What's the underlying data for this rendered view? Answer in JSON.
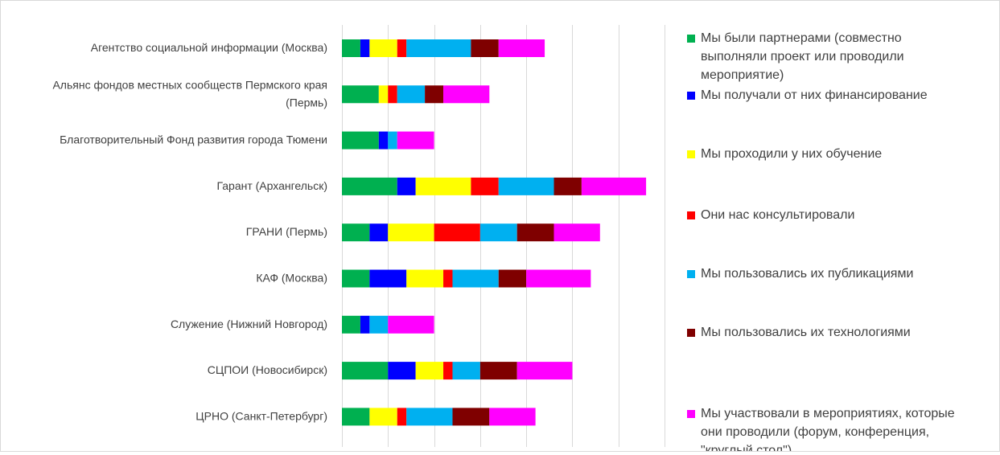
{
  "chart_data": {
    "type": "bar",
    "orientation": "horizontal",
    "stacked": true,
    "grid": true,
    "legend_position": "right",
    "categories": [
      "Агентство социальной информации (Москва)",
      "Альянс фондов местных сообществ Пермского края (Пермь)",
      "Благотворительный Фонд развития города Тюмени",
      "Гарант (Архангельск)",
      "ГРАНИ (Пермь)",
      "КАФ (Москва)",
      "Служение (Нижний Новгород)",
      "СЦПОИ (Новосибирск)",
      "ЦРНО (Санкт-Петербург)"
    ],
    "category_lines": [
      [
        "Агентство социальной информации (Москва)"
      ],
      [
        "Альянс фондов местных сообществ Пермского края",
        "(Пермь)"
      ],
      [
        "Благотворительный Фонд развития города Тюмени"
      ],
      [
        "Гарант (Архангельск)"
      ],
      [
        "ГРАНИ (Пермь)"
      ],
      [
        "КАФ (Москва)"
      ],
      [
        "Служение (Нижний Новгород)"
      ],
      [
        "СЦПОИ (Новосибирск)"
      ],
      [
        "ЦРНО (Санкт-Петербург)"
      ]
    ],
    "xlim": [
      0,
      35
    ],
    "x_gridlines": [
      0,
      5,
      10,
      15,
      20,
      25,
      30,
      35
    ],
    "series": [
      {
        "name": "Мы были партнерами (совместно выполняли проект или проводили мероприятие)",
        "legend_lines": [
          "Мы были партнерами (совместно",
          "выполняли проект или проводили",
          "мероприятие)"
        ],
        "color": "#00b050",
        "values": [
          2,
          4,
          4,
          6,
          3,
          3,
          2,
          5,
          3
        ]
      },
      {
        "name": "Мы получали от них финансирование",
        "legend_lines": [
          "Мы получали от них финансирование"
        ],
        "color": "#0000ff",
        "values": [
          1,
          0,
          1,
          2,
          2,
          4,
          1,
          3,
          0
        ]
      },
      {
        "name": "Мы проходили у них обучение",
        "legend_lines": [
          "Мы проходили у них обучение"
        ],
        "color": "#ffff00",
        "values": [
          3,
          1,
          0,
          6,
          5,
          4,
          0,
          3,
          3
        ]
      },
      {
        "name": "Они нас консультировали",
        "legend_lines": [
          "Они нас консультировали"
        ],
        "color": "#ff0000",
        "values": [
          1,
          1,
          0,
          3,
          5,
          1,
          0,
          1,
          1
        ]
      },
      {
        "name": "Мы пользовались их публикациями",
        "legend_lines": [
          "Мы пользовались их публикациями"
        ],
        "color": "#00b0f0",
        "values": [
          7,
          3,
          1,
          6,
          4,
          5,
          2,
          3,
          5
        ]
      },
      {
        "name": "Мы пользовались их технологиями",
        "legend_lines": [
          "Мы пользовались их технологиями"
        ],
        "color": "#7f0000",
        "values": [
          3,
          2,
          0,
          3,
          4,
          3,
          0,
          4,
          4
        ]
      },
      {
        "name": "Мы участвовали в мероприятиях, которые они проводили (форум, конференция, \"круглый стол\")",
        "legend_lines": [
          "Мы участвовали в мероприятиях, которые",
          "они проводили (форум, конференция,",
          "\"круглый стол\")"
        ],
        "color": "#ff00ff",
        "values": [
          5,
          5,
          4,
          7,
          5,
          7,
          5,
          6,
          5
        ]
      }
    ]
  }
}
